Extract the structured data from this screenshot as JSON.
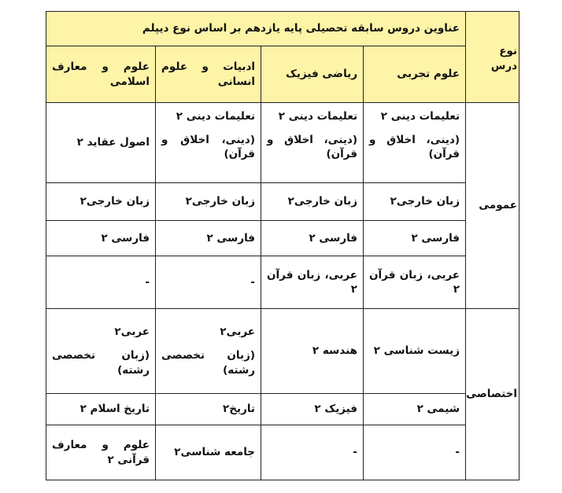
{
  "header": {
    "type_label": "نوع درس",
    "title": "عناوین دروس سابقه تحصیلی پایه یازدهم بر اساس نوع دیپلم",
    "columns": [
      "علوم تجربی",
      "ریاضی فیزیک",
      "ادبیات و علوم انسانی",
      "علوم و معارف اسلامی"
    ]
  },
  "groups": [
    {
      "type": "عمومی",
      "rows": [
        [
          [
            "تعلیمات دینی ۲",
            "(دینی، اخلاق و قرآن)"
          ],
          [
            "تعلیمات دینی ۲",
            "(دینی، اخلاق و قرآن)"
          ],
          [
            "تعلیمات دینی ۲",
            "(دینی، اخلاق و قرآن)"
          ],
          [
            "اصول عقاید ۲"
          ]
        ],
        [
          [
            "زبان خارجی۲"
          ],
          [
            "زبان خارجی۲"
          ],
          [
            "زبان خارجی۲"
          ],
          [
            "زبان خارجی۲"
          ]
        ],
        [
          [
            "فارسی ۲"
          ],
          [
            "فارسی ۲"
          ],
          [
            "فارسی ۲"
          ],
          [
            "فارسی ۲"
          ]
        ],
        [
          [
            "عربی، زبان قرآن ۲"
          ],
          [
            "عربی، زبان قرآن ۲"
          ],
          [
            "-"
          ],
          [
            "-"
          ]
        ]
      ]
    },
    {
      "type": "اختصاصی",
      "rows": [
        [
          [
            "زیست شناسی ۲"
          ],
          [
            "هندسه ۲"
          ],
          [
            "عربی۲",
            "(زبان تخصصی رشته)"
          ],
          [
            "عربی۲",
            "(زبان تخصصی رشته)"
          ]
        ],
        [
          [
            "شیمی ۲"
          ],
          [
            "فیزیک ۲"
          ],
          [
            "تاریخ۲"
          ],
          [
            "تاریخ اسلام ۲"
          ]
        ],
        [
          [
            "-"
          ],
          [
            "-"
          ],
          [
            "جامعه شناسی۲"
          ],
          [
            "علوم و معارف قرآنی ۲"
          ]
        ]
      ]
    }
  ]
}
